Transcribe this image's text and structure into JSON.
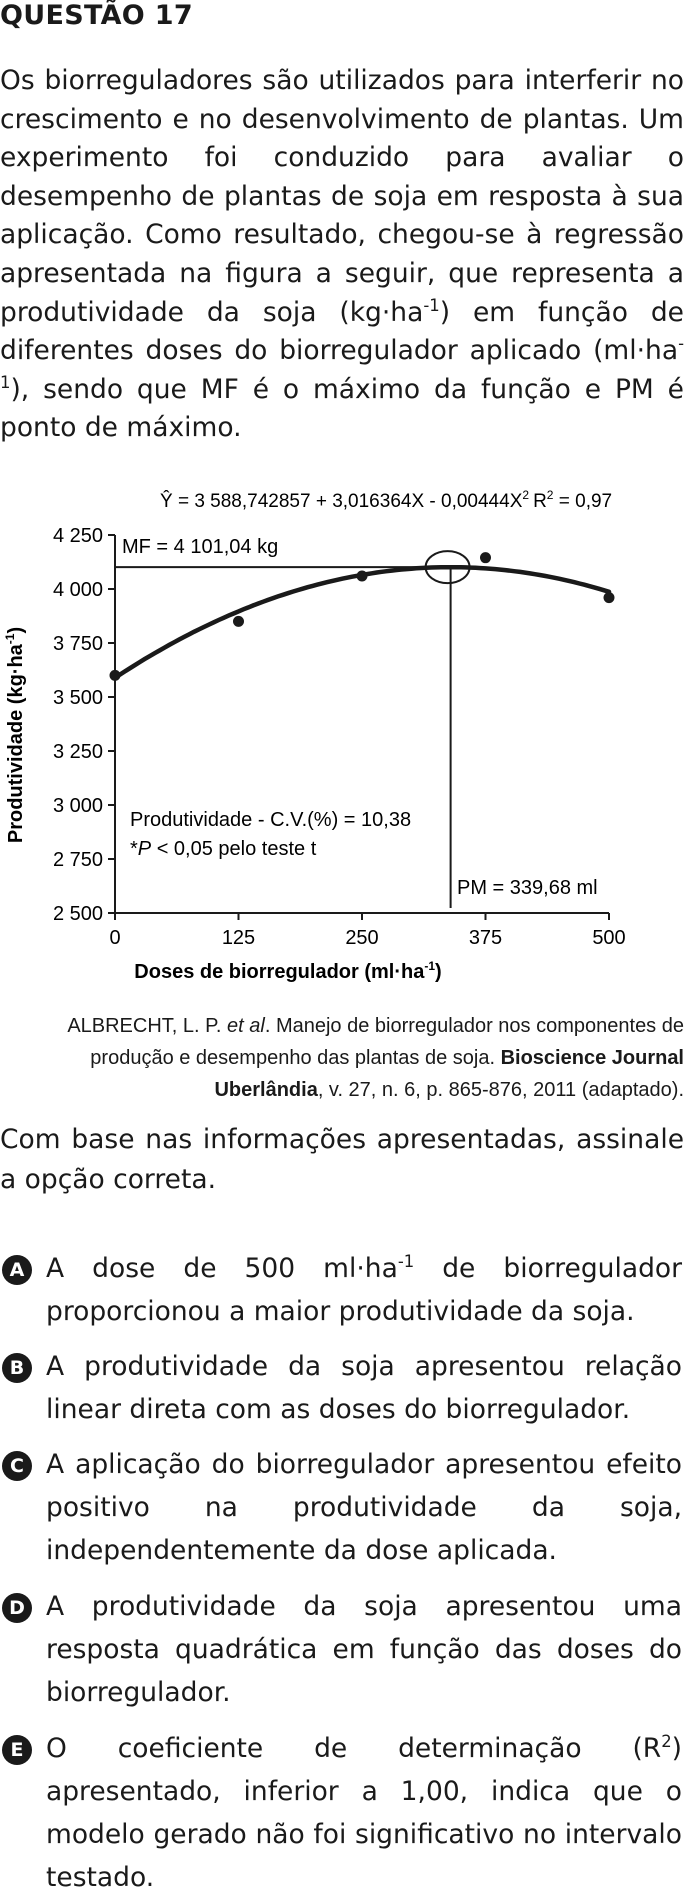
{
  "question": {
    "title": "QUESTÃO 17",
    "intro": {
      "part1": "Os biorreguladores são utilizados para interferir no crescimento e no desenvolvimento de plantas. Um experimento foi conduzido para avaliar o desempenho de plantas de soja em resposta à sua aplicação. Como resultado, chegou-se à regressão apresentada na figura a seguir, que representa a produtividade da soja (kg·ha",
      "exp1": "-1",
      "part2": ") em função de diferentes doses do biorregulador aplicado (ml·ha",
      "exp2": "-1",
      "part3": "), sendo que MF é o máximo da função e PM é ponto de máximo."
    },
    "stem": "Com base nas informações apresentadas, assinale a opção correta.",
    "options": [
      {
        "letter": "A",
        "pre": "A dose de 500 ml·ha",
        "sup": "-1",
        "post": " de biorregulador proporcionou a maior produtividade da soja."
      },
      {
        "letter": "B",
        "pre": "A produtividade da soja apresentou relação linear direta com as doses do biorregulador.",
        "sup": "",
        "post": ""
      },
      {
        "letter": "C",
        "pre": "A aplicação do biorregulador apresentou efeito positivo na produtividade da soja, independentemente da dose aplicada.",
        "sup": "",
        "post": ""
      },
      {
        "letter": "D",
        "pre": "A produtividade da soja apresentou uma resposta quadrática em função das doses do biorregulador.",
        "sup": "",
        "post": ""
      },
      {
        "letter": "E",
        "pre": "O coeficiente de determinação (R",
        "sup": "2",
        "post": ") apresentado, inferior a 1,00, indica que o modelo gerado não foi significativo no intervalo testado."
      }
    ]
  },
  "citation": {
    "authors": "ALBRECHT, L. P. ",
    "etal": "et al",
    "text1": ". Manejo de biorregulador nos componentes de produção e desempenho das plantas de soja. ",
    "journal": "Bioscience Journal Uberlândia",
    "text2": ", v. 27, n. 6, p. 865-876, 2011 (adaptado)."
  },
  "chart_data": {
    "type": "scatter",
    "equation": "Ŷ = 3 588,742857 + 3,016364X - 0,00444X",
    "equation_exp": "2",
    "r2_label": "R",
    "r2_exp": "2",
    "r2_value": " = 0,97",
    "xlabel": "Doses de biorregulador (ml·ha",
    "xlabel_exp": "-1",
    "xlabel_end": ")",
    "ylabel": "Produtividade (kg·ha",
    "ylabel_exp": "-1",
    "ylabel_end": ")",
    "xlim": [
      0,
      500
    ],
    "ylim": [
      2500,
      4250
    ],
    "x_ticks": [
      0,
      125,
      250,
      375,
      500
    ],
    "x_tick_labels": [
      "0",
      "125",
      "250",
      "375",
      "500"
    ],
    "y_ticks": [
      2500,
      2750,
      3000,
      3250,
      3500,
      3750,
      4000,
      4250
    ],
    "y_tick_labels": [
      "2 500",
      "2 750",
      "3 000",
      "3 250",
      "3 500",
      "3 750",
      "4 000",
      "4 250"
    ],
    "points": [
      {
        "x": 0,
        "y": 3600
      },
      {
        "x": 125,
        "y": 3850
      },
      {
        "x": 250,
        "y": 4060
      },
      {
        "x": 375,
        "y": 4145
      },
      {
        "x": 500,
        "y": 3960
      }
    ],
    "fit": {
      "a": 3588.742857,
      "b": 3.016364,
      "c": -0.00444
    },
    "max_point": {
      "x": 339.68,
      "y": 4101.04
    },
    "mf_label": "MF = 4 101,04 kg",
    "pm_label": "PM = 339,68 ml",
    "cv_label": "Produtividade - C.V.(%) = 10,38",
    "p_label_star": "*",
    "p_label_p": "P",
    "p_label_rest": " < 0,05  pelo teste t"
  }
}
